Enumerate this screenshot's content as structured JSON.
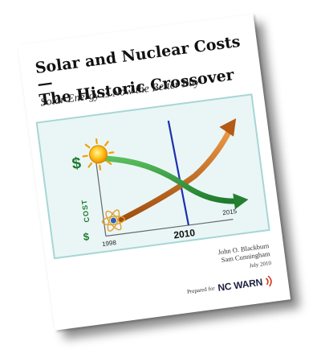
{
  "cover": {
    "title_lines": [
      "Solar and Nuclear Costs —",
      "The Historic Crossover"
    ],
    "subtitle": "Solar Energy is Now the Better Buy",
    "authors": [
      "John O. Blackburn",
      "Sam Cunningham"
    ],
    "date": "July 2010",
    "prepared_for_label": "Prepared for",
    "org_name": "NC WARN",
    "colors": {
      "solar_line": "#2e9a3e",
      "nuclear_line": "#c8661c",
      "crossover_line": "#1c2fb0",
      "axis_symbol": "#1d7a2e",
      "panel_background": "#eaf6f6",
      "org_signal": "#d83a1e"
    },
    "icons": [
      "sun-icon",
      "atom-icon",
      "signal-waves-icon"
    ]
  },
  "chart_data": {
    "type": "line",
    "ylabel": "COST",
    "y_high_symbol": "$",
    "y_low_symbol": "$",
    "x_ticks": [
      "1998",
      "2010",
      "2015"
    ],
    "highlight_x": "2010",
    "series": [
      {
        "icon": "sun-icon",
        "trend": "decreasing",
        "color": "#2e9a3e"
      },
      {
        "icon": "atom-icon",
        "trend": "increasing",
        "color": "#c8661c"
      }
    ]
  }
}
